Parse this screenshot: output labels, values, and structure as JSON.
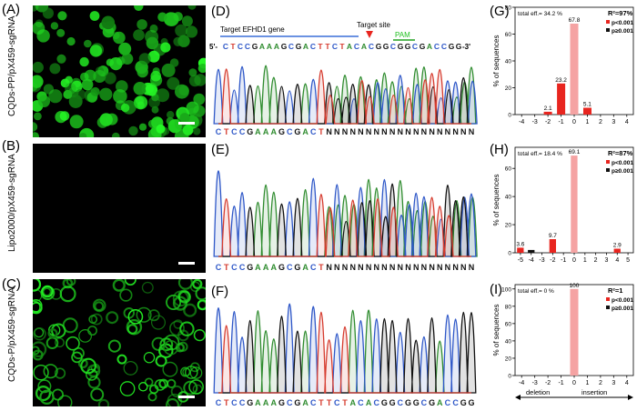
{
  "panels": {
    "A": {
      "label": "(A)",
      "side_label": "CQDs-PP/pX459-sgRNA"
    },
    "B": {
      "label": "(B)",
      "side_label": "Lipo2000/pX459-sgRNA"
    },
    "C": {
      "label": "(C)",
      "side_label": "CQDs-P/pX459-sgRNA"
    },
    "D": {
      "label": "(D)",
      "gene_label": "Target EFHD1 gene",
      "target_label": "Target site",
      "pam_label": "PAM",
      "five_prime": "5'-",
      "three_prime": "-3'",
      "sequence": [
        "C",
        "T",
        "C",
        "C",
        "G",
        "A",
        "A",
        "A",
        "G",
        "C",
        "G",
        "A",
        "C",
        "T",
        "T",
        "C",
        "T",
        "A",
        "C",
        "A",
        "C",
        "G",
        "G",
        "C",
        "G",
        "G",
        "C",
        "G",
        "A",
        "C",
        "C",
        "G",
        "G"
      ],
      "call_sequence": [
        "C",
        "T",
        "C",
        "C",
        "G",
        "A",
        "A",
        "A",
        "G",
        "C",
        "G",
        "A",
        "C",
        "T",
        "N",
        "N",
        "N",
        "N",
        "N",
        "N",
        "N",
        "N",
        "N",
        "N",
        "N",
        "N",
        "N",
        "N",
        "N",
        "N",
        "N",
        "N",
        "N"
      ]
    },
    "E": {
      "label": "(E)",
      "call_sequence": [
        "C",
        "T",
        "C",
        "C",
        "G",
        "A",
        "A",
        "A",
        "G",
        "C",
        "G",
        "A",
        "C",
        "T",
        "N",
        "N",
        "N",
        "N",
        "N",
        "N",
        "N",
        "N",
        "N",
        "N",
        "N",
        "N",
        "N",
        "N",
        "N",
        "N",
        "N",
        "N",
        "N"
      ]
    },
    "F": {
      "label": "(F)",
      "call_sequence": [
        "C",
        "T",
        "C",
        "C",
        "G",
        "A",
        "A",
        "A",
        "G",
        "C",
        "G",
        "A",
        "C",
        "T",
        "T",
        "C",
        "T",
        "A",
        "C",
        "A",
        "C",
        "G",
        "G",
        "C",
        "G",
        "G",
        "C",
        "G",
        "A",
        "C",
        "C",
        "G",
        "G"
      ]
    },
    "G": {
      "label": "(G)"
    },
    "H": {
      "label": "(H)"
    },
    "I": {
      "label": "(I)"
    },
    "axis": {
      "deletion": "deletion",
      "insertion": "insertion"
    }
  },
  "colors": {
    "A": "#2f8c2f",
    "C": "#2f58c8",
    "G": "#111111",
    "T": "#d63c2f",
    "N": "#111111",
    "red": "#e8251f",
    "pink": "#f5a3a3",
    "black": "#111111",
    "green": "#21c021"
  },
  "chart_data": [
    {
      "type": "bar",
      "id": "G",
      "x": [
        -4,
        -3,
        -2,
        -1,
        0,
        1,
        2,
        3,
        4
      ],
      "values": [
        0,
        0,
        2.1,
        23.2,
        67.8,
        5.1,
        0,
        0,
        0
      ],
      "series_color": [
        "black",
        "black",
        "red",
        "red",
        "pink",
        "red",
        "black",
        "black",
        "black"
      ],
      "labels": [
        "",
        "",
        "2.1",
        "23.2",
        "67.8",
        "5.1",
        "",
        "",
        ""
      ],
      "ylim": [
        0,
        80
      ],
      "yticks": [
        0,
        20,
        40,
        60,
        80
      ],
      "ylabel": "% of sequences",
      "total_eff": "total eff.= 34.2 %",
      "r2": "R²=97%",
      "legend": [
        "p<0.001",
        "p≥0.001"
      ],
      "legend_colors": [
        "red",
        "black"
      ]
    },
    {
      "type": "bar",
      "id": "H",
      "x": [
        -5,
        -4,
        -3,
        -2,
        -1,
        0,
        1,
        2,
        3,
        4,
        5
      ],
      "values": [
        3.6,
        2.0,
        0,
        9.7,
        0,
        69.1,
        0,
        0,
        0,
        2.9,
        0
      ],
      "series_color": [
        "red",
        "black",
        "black",
        "red",
        "black",
        "pink",
        "black",
        "black",
        "black",
        "red",
        "black"
      ],
      "labels": [
        "3.6",
        "",
        "",
        "9.7",
        "",
        "69.1",
        "",
        "",
        "",
        "2.9",
        ""
      ],
      "ylim": [
        0,
        75
      ],
      "yticks": [
        0,
        20,
        40,
        60
      ],
      "ylabel": "% of sequences",
      "total_eff": "total eff.= 18.4 %",
      "r2": "R²=87%",
      "legend": [
        "p<0.001",
        "p≥0.001"
      ],
      "legend_colors": [
        "red",
        "black"
      ]
    },
    {
      "type": "bar",
      "id": "I",
      "x": [
        -4,
        -3,
        -2,
        -1,
        0,
        1,
        2,
        3,
        4
      ],
      "values": [
        0,
        0,
        0,
        0,
        100,
        0,
        0,
        0,
        0
      ],
      "series_color": [
        "black",
        "black",
        "black",
        "black",
        "pink",
        "black",
        "black",
        "black",
        "black"
      ],
      "labels": [
        "",
        "",
        "",
        "",
        "100",
        "",
        "",
        "",
        ""
      ],
      "ylim": [
        0,
        105
      ],
      "yticks": [
        0,
        20,
        40,
        60,
        80,
        100
      ],
      "ylabel": "% of sequences",
      "total_eff": "total eff.= 0 %",
      "r2": "R²=1",
      "legend": [
        "p<0.001",
        "p≥0.001"
      ],
      "legend_colors": [
        "red",
        "black"
      ]
    }
  ]
}
